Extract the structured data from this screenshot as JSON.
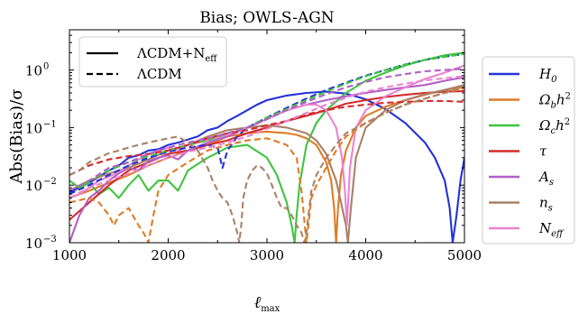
{
  "chart_data": {
    "type": "line",
    "title": "Bias; OWLS-AGN",
    "xlabel": "ℓ",
    "xlabel_sub": "max",
    "ylabel": "Abs(Bias)/σ",
    "xlim": [
      1000,
      5000
    ],
    "ylim": [
      0.001,
      5
    ],
    "yscale": "log",
    "xticks": [
      1000,
      2000,
      3000,
      4000,
      5000
    ],
    "xtick_labels": [
      "1000",
      "2000",
      "3000",
      "4000",
      "5000"
    ],
    "yticks": [
      0.001,
      0.01,
      0.1,
      1
    ],
    "ytick_labels": [
      {
        "base": "10",
        "exp": "−3"
      },
      {
        "base": "10",
        "exp": "−2"
      },
      {
        "base": "10",
        "exp": "−1"
      },
      {
        "base": "10",
        "exp": "0"
      }
    ],
    "style_legend": [
      {
        "label": "ΛCDM+N",
        "sub": "eff",
        "dash": "solid"
      },
      {
        "label": "ΛCDM",
        "sub": "",
        "dash": "dashed"
      }
    ],
    "series_legend": [
      {
        "label": "H",
        "sub": "0",
        "sup": "",
        "color": "#2432d8"
      },
      {
        "label": "Ω",
        "sub": "b",
        "tail": "h",
        "sup": "2",
        "color": "#e07b24"
      },
      {
        "label": "Ω",
        "sub": "c",
        "tail": "h",
        "sup": "2",
        "color": "#3fc43f"
      },
      {
        "label": "τ",
        "sub": "",
        "sup": "",
        "color": "#d42a2a"
      },
      {
        "label": "A",
        "sub": "s",
        "sup": "",
        "color": "#b45ec6"
      },
      {
        "label": "n",
        "sub": "s",
        "sup": "",
        "color": "#a88268"
      },
      {
        "label": "N",
        "sub": "eff",
        "sup": "",
        "color": "#ea84d0"
      }
    ],
    "series": [
      {
        "name": "H0 (ΛCDM+Neff)",
        "color": "#2432d8",
        "dash": "solid",
        "x": [
          1000,
          1100,
          1200,
          1300,
          1400,
          1500,
          1600,
          1700,
          1800,
          1900,
          2000,
          2100,
          2200,
          2300,
          2400,
          2500,
          2600,
          2700,
          2800,
          2900,
          3000,
          3200,
          3400,
          3600,
          3800,
          4000,
          4200,
          4400,
          4600,
          4700,
          4800,
          4850,
          4880,
          4920,
          4960,
          5000
        ],
        "y": [
          0.0075,
          0.009,
          0.011,
          0.014,
          0.018,
          0.022,
          0.03,
          0.033,
          0.04,
          0.042,
          0.05,
          0.055,
          0.062,
          0.07,
          0.09,
          0.1,
          0.13,
          0.16,
          0.2,
          0.25,
          0.3,
          0.36,
          0.4,
          0.42,
          0.39,
          0.31,
          0.21,
          0.12,
          0.055,
          0.03,
          0.012,
          0.004,
          0.001,
          0.003,
          0.012,
          0.03
        ]
      },
      {
        "name": "Ωbh2 (ΛCDM+Neff)",
        "color": "#e07b24",
        "dash": "solid",
        "x": [
          1000,
          1200,
          1400,
          1600,
          1800,
          2000,
          2200,
          2400,
          2600,
          2800,
          3000,
          3200,
          3300,
          3400,
          3500,
          3600,
          3650,
          3680,
          3700,
          3720,
          3750,
          3800,
          3900,
          4000,
          4200,
          4400,
          4600,
          4800,
          5000
        ],
        "y": [
          0.006,
          0.008,
          0.011,
          0.015,
          0.022,
          0.03,
          0.04,
          0.05,
          0.07,
          0.08,
          0.085,
          0.08,
          0.075,
          0.065,
          0.05,
          0.025,
          0.012,
          0.004,
          0.001,
          0.004,
          0.015,
          0.04,
          0.1,
          0.16,
          0.23,
          0.3,
          0.37,
          0.45,
          0.5
        ]
      },
      {
        "name": "Ωch2 (ΛCDM+Neff)",
        "color": "#3fc43f",
        "dash": "solid",
        "x": [
          1000,
          1100,
          1200,
          1300,
          1400,
          1500,
          1600,
          1700,
          1800,
          1900,
          2000,
          2100,
          2200,
          2400,
          2600,
          2800,
          3000,
          3100,
          3200,
          3250,
          3280,
          3300,
          3330,
          3400,
          3500,
          3600,
          3800,
          4000,
          4200,
          4400,
          4600,
          4800,
          5000
        ],
        "y": [
          0.012,
          0.009,
          0.011,
          0.007,
          0.009,
          0.006,
          0.01,
          0.015,
          0.008,
          0.012,
          0.012,
          0.008,
          0.018,
          0.03,
          0.045,
          0.05,
          0.03,
          0.015,
          0.005,
          0.002,
          0.001,
          0.003,
          0.01,
          0.05,
          0.12,
          0.2,
          0.4,
          0.65,
          0.9,
          1.2,
          1.5,
          1.8,
          2.0
        ]
      },
      {
        "name": "τ (ΛCDM+Neff)",
        "color": "#d42a2a",
        "dash": "solid",
        "x": [
          1000,
          1200,
          1400,
          1600,
          1800,
          2000,
          2200,
          2400,
          2600,
          2800,
          3000,
          3200,
          3400,
          3600,
          3800,
          4000,
          4200,
          4400,
          4600,
          4800,
          5000
        ],
        "y": [
          0.0025,
          0.005,
          0.01,
          0.018,
          0.025,
          0.035,
          0.04,
          0.05,
          0.06,
          0.08,
          0.1,
          0.13,
          0.16,
          0.2,
          0.26,
          0.3,
          0.34,
          0.37,
          0.4,
          0.42,
          0.43
        ]
      },
      {
        "name": "As (ΛCDM+Neff)",
        "color": "#b45ec6",
        "dash": "solid",
        "x": [
          1000,
          1100,
          1200,
          1300,
          1400,
          1500,
          1600,
          1700,
          1800,
          1900,
          2000,
          2100,
          2200,
          2400,
          2600,
          2800,
          3000,
          3200,
          3400,
          3600,
          3800,
          4000,
          4200,
          4400,
          4600,
          4800,
          5000
        ],
        "y": [
          0.001,
          0.003,
          0.006,
          0.008,
          0.012,
          0.016,
          0.02,
          0.018,
          0.026,
          0.03,
          0.033,
          0.028,
          0.04,
          0.055,
          0.07,
          0.1,
          0.14,
          0.2,
          0.25,
          0.3,
          0.35,
          0.4,
          0.45,
          0.5,
          0.55,
          0.65,
          0.75
        ]
      },
      {
        "name": "ns (ΛCDM+Neff)",
        "color": "#a88268",
        "dash": "solid",
        "x": [
          1000,
          1200,
          1400,
          1600,
          1800,
          2000,
          2200,
          2400,
          2600,
          2800,
          3000,
          3200,
          3400,
          3500,
          3600,
          3700,
          3750,
          3800,
          3820,
          3850,
          3900,
          4000,
          4200,
          4400,
          4600,
          4800,
          5000
        ],
        "y": [
          0.008,
          0.012,
          0.016,
          0.02,
          0.028,
          0.04,
          0.05,
          0.07,
          0.09,
          0.1,
          0.11,
          0.1,
          0.08,
          0.06,
          0.035,
          0.012,
          0.005,
          0.002,
          0.001,
          0.004,
          0.03,
          0.1,
          0.2,
          0.3,
          0.38,
          0.45,
          0.55
        ]
      },
      {
        "name": "Neff (ΛCDM+Neff)",
        "color": "#ea84d0",
        "dash": "solid",
        "x": [
          1000,
          1100,
          1200,
          1300,
          1400,
          1500,
          1600,
          1700,
          1800,
          1900,
          2000,
          2100,
          2200,
          2400,
          2600,
          2800,
          3000,
          3200,
          3400,
          3500,
          3600,
          3700,
          3760,
          3790,
          3810,
          3840,
          3900,
          4000,
          4200,
          4400,
          4600,
          4800,
          5000
        ],
        "y": [
          0.006,
          0.007,
          0.009,
          0.012,
          0.014,
          0.017,
          0.022,
          0.028,
          0.034,
          0.04,
          0.045,
          0.04,
          0.05,
          0.06,
          0.075,
          0.1,
          0.14,
          0.2,
          0.25,
          0.25,
          0.2,
          0.1,
          0.03,
          0.008,
          0.002,
          0.02,
          0.1,
          0.2,
          0.35,
          0.5,
          0.7,
          0.9,
          1.2
        ]
      },
      {
        "name": "H0 (ΛCDM)",
        "color": "#2432d8",
        "dash": "dashed",
        "x": [
          1000,
          1200,
          1400,
          1600,
          1800,
          2000,
          2200,
          2400,
          2500,
          2550,
          2600,
          2700,
          2800,
          3000,
          3200,
          3400,
          3600,
          3800,
          4000,
          4200,
          4400,
          4600,
          4800,
          5000
        ],
        "y": [
          0.007,
          0.01,
          0.015,
          0.022,
          0.03,
          0.038,
          0.045,
          0.05,
          0.045,
          0.02,
          0.04,
          0.07,
          0.1,
          0.15,
          0.22,
          0.32,
          0.45,
          0.6,
          0.8,
          1.0,
          1.25,
          1.5,
          1.7,
          1.9
        ]
      },
      {
        "name": "Ωbh2 (ΛCDM)",
        "color": "#e07b24",
        "dash": "dashed",
        "x": [
          1000,
          1200,
          1300,
          1400,
          1450,
          1500,
          1600,
          1700,
          1750,
          1800,
          1850,
          1900,
          2000,
          2200,
          2400,
          2600,
          2800,
          3000,
          3200,
          3300,
          3350,
          3400,
          3450,
          3500,
          3600,
          3700,
          3800,
          4000,
          4200,
          4400,
          4600,
          4800,
          5000
        ],
        "y": [
          0.005,
          0.006,
          0.005,
          0.003,
          0.002,
          0.003,
          0.004,
          0.002,
          0.0015,
          0.001,
          0.003,
          0.008,
          0.015,
          0.025,
          0.04,
          0.05,
          0.06,
          0.065,
          0.05,
          0.03,
          0.008,
          0.001,
          0.006,
          0.01,
          0.02,
          0.04,
          0.07,
          0.12,
          0.18,
          0.25,
          0.32,
          0.4,
          0.48
        ]
      },
      {
        "name": "Ωch2 (ΛCDM)",
        "color": "#3fc43f",
        "dash": "dashed",
        "x": [
          1000,
          1200,
          1400,
          1600,
          1800,
          2000,
          2200,
          2400,
          2600,
          2800,
          3000,
          3200,
          3400,
          3600,
          3800,
          4000,
          4200,
          4400,
          4600,
          4800,
          5000
        ],
        "y": [
          0.008,
          0.012,
          0.018,
          0.025,
          0.032,
          0.04,
          0.05,
          0.06,
          0.08,
          0.1,
          0.15,
          0.21,
          0.3,
          0.42,
          0.58,
          0.78,
          1.0,
          1.25,
          1.5,
          1.7,
          1.9
        ]
      },
      {
        "name": "τ (ΛCDM)",
        "color": "#d42a2a",
        "dash": "dashed",
        "x": [
          1000,
          1200,
          1400,
          1600,
          1800,
          2000,
          2200,
          2400,
          2600,
          2800,
          3000,
          3200,
          3400,
          3600,
          3800,
          4000,
          4200,
          4400,
          4600,
          4800,
          5000
        ],
        "y": [
          0.015,
          0.022,
          0.028,
          0.032,
          0.035,
          0.04,
          0.05,
          0.065,
          0.08,
          0.09,
          0.11,
          0.13,
          0.17,
          0.2,
          0.23,
          0.25,
          0.27,
          0.28,
          0.29,
          0.29,
          0.28
        ]
      },
      {
        "name": "As (ΛCDM)",
        "color": "#b45ec6",
        "dash": "dashed",
        "x": [
          1000,
          1200,
          1400,
          1600,
          1800,
          2000,
          2200,
          2400,
          2600,
          2800,
          3000,
          3200,
          3400,
          3600,
          3800,
          4000,
          4200,
          4400,
          4600,
          4800,
          5000
        ],
        "y": [
          0.008,
          0.012,
          0.02,
          0.025,
          0.035,
          0.045,
          0.055,
          0.065,
          0.08,
          0.1,
          0.14,
          0.2,
          0.28,
          0.38,
          0.5,
          0.62,
          0.75,
          0.85,
          0.95,
          1.0,
          1.05
        ]
      },
      {
        "name": "ns (ΛCDM)",
        "color": "#a88268",
        "dash": "dashed",
        "x": [
          1000,
          1100,
          1200,
          1300,
          1400,
          1500,
          1600,
          1700,
          1800,
          1900,
          2000,
          2100,
          2200,
          2300,
          2400,
          2450,
          2500,
          2550,
          2600,
          2650,
          2700,
          2720,
          2740,
          2760,
          2800,
          2850,
          2900,
          2950,
          3000,
          3050,
          3100,
          3150,
          3200,
          3250,
          3300,
          3350,
          3380,
          3400,
          3420,
          3450,
          3500,
          3600,
          3700,
          3800,
          4000,
          4200,
          4400,
          4600,
          4800,
          5000
        ],
        "y": [
          0.015,
          0.018,
          0.025,
          0.03,
          0.036,
          0.04,
          0.045,
          0.05,
          0.055,
          0.06,
          0.065,
          0.07,
          0.055,
          0.04,
          0.02,
          0.012,
          0.008,
          0.006,
          0.005,
          0.003,
          0.0015,
          0.001,
          0.002,
          0.006,
          0.012,
          0.018,
          0.022,
          0.02,
          0.016,
          0.01,
          0.006,
          0.004,
          0.004,
          0.003,
          0.002,
          0.0015,
          0.001,
          0.0015,
          0.003,
          0.008,
          0.015,
          0.03,
          0.05,
          0.08,
          0.12,
          0.18,
          0.25,
          0.32,
          0.4,
          0.5
        ]
      },
      {
        "name": "Neff (ΛCDM)",
        "color": "#ea84d0",
        "dash": "dashed",
        "x": [
          1000,
          1200,
          1400,
          1600,
          1800,
          2000,
          2200,
          2400,
          2600,
          2800,
          3000,
          3200,
          3400,
          3600,
          3800,
          4000,
          4200,
          4400,
          4600,
          4800,
          5000
        ],
        "y": [
          0.006,
          0.009,
          0.012,
          0.016,
          0.022,
          0.03,
          0.038,
          0.045,
          0.055,
          0.07,
          0.095,
          0.13,
          0.18,
          0.25,
          0.33,
          0.42,
          0.5,
          0.58,
          0.66,
          0.72,
          0.78
        ]
      }
    ]
  }
}
